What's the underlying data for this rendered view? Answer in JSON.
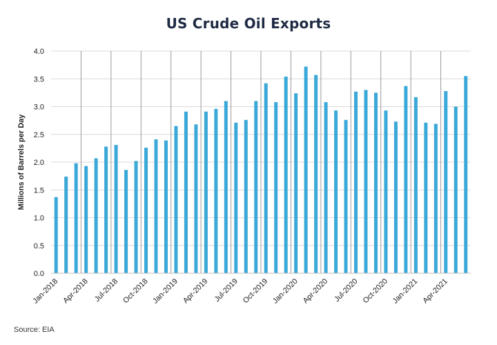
{
  "chart_data": {
    "type": "bar",
    "title": "US Crude Oil Exports",
    "xlabel": "",
    "ylabel": "Millions of Barrels per Day",
    "ylim": [
      0,
      4.0
    ],
    "yticks": [
      "0.0",
      "0.5",
      "1.0",
      "1.5",
      "2.0",
      "2.5",
      "3.0",
      "3.5",
      "4.0"
    ],
    "grid": "horizontal and vertical",
    "bar_color": "#3aa8d8",
    "categories": [
      "Jan-2018",
      "Feb-2018",
      "Mar-2018",
      "Apr-2018",
      "May-2018",
      "Jun-2018",
      "Jul-2018",
      "Aug-2018",
      "Sep-2018",
      "Oct-2018",
      "Nov-2018",
      "Dec-2018",
      "Jan-2019",
      "Feb-2019",
      "Mar-2019",
      "Apr-2019",
      "May-2019",
      "Jun-2019",
      "Jul-2019",
      "Aug-2019",
      "Sep-2019",
      "Oct-2019",
      "Nov-2019",
      "Dec-2019",
      "Jan-2020",
      "Feb-2020",
      "Mar-2020",
      "Apr-2020",
      "May-2020",
      "Jun-2020",
      "Jul-2020",
      "Aug-2020",
      "Sep-2020",
      "Oct-2020",
      "Nov-2020",
      "Dec-2020",
      "Jan-2021",
      "Feb-2021",
      "Mar-2021",
      "Apr-2021",
      "May-2021",
      "Jun-2021"
    ],
    "xtick_labels": [
      "Jan-2018",
      "Apr-2018",
      "Jul-2018",
      "Oct-2018",
      "Jan-2019",
      "Apr-2019",
      "Jul-2019",
      "Oct-2019",
      "Jan-2020",
      "Apr-2020",
      "Jul-2020",
      "Oct-2020",
      "Jan-2021",
      "Apr-2021"
    ],
    "values": [
      1.37,
      1.74,
      1.98,
      1.93,
      2.07,
      2.28,
      2.31,
      1.86,
      2.02,
      2.26,
      2.41,
      2.39,
      2.65,
      2.91,
      2.68,
      2.91,
      2.96,
      3.1,
      2.71,
      2.76,
      3.1,
      3.42,
      3.08,
      3.54,
      3.24,
      3.72,
      3.57,
      3.08,
      2.93,
      2.76,
      3.27,
      3.3,
      3.25,
      2.93,
      2.73,
      3.37,
      3.17,
      2.71,
      2.69,
      3.28,
      3.0,
      3.55
    ]
  },
  "source": "Source: EIA"
}
